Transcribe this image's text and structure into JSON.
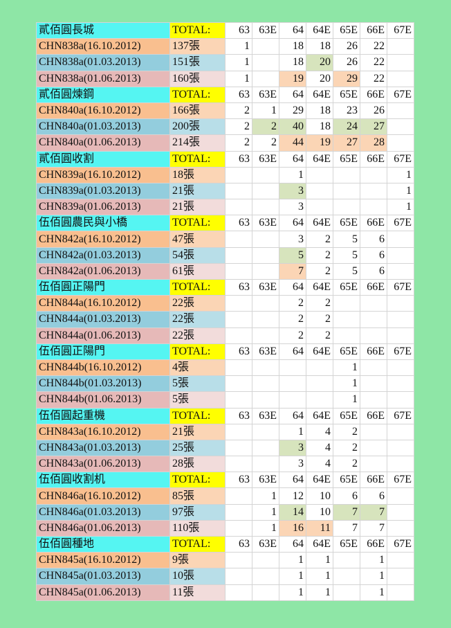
{
  "total_label": "TOTAL:",
  "columns": [
    "63",
    "63E",
    "64",
    "64E",
    "65E",
    "66E",
    "67E"
  ],
  "colors": {
    "background": "#8ee6a6",
    "group_header": "#55f5f2",
    "total_header": "#ffff00",
    "column_header": "#b3a2cd",
    "increase_green": "#d7e4bd",
    "increase_orange": "#fbd5b5"
  },
  "groups": [
    {
      "title": "貳佰圓長城",
      "rows": [
        {
          "name": "CHN838a(16.10.2012)",
          "total": "137張",
          "cells": [
            "1",
            "",
            "18",
            "18",
            "26",
            "22",
            ""
          ],
          "hl": [
            "",
            "",
            "",
            "",
            "",
            "",
            ""
          ]
        },
        {
          "name": "CHN838a(01.03.2013)",
          "total": "151張",
          "cells": [
            "1",
            "",
            "18",
            "20",
            "26",
            "22",
            ""
          ],
          "hl": [
            "",
            "",
            "",
            "g",
            "",
            "",
            ""
          ]
        },
        {
          "name": "CHN838a(01.06.2013)",
          "total": "160張",
          "cells": [
            "1",
            "",
            "19",
            "20",
            "29",
            "22",
            ""
          ],
          "hl": [
            "",
            "",
            "o",
            "",
            "o",
            "",
            ""
          ]
        }
      ]
    },
    {
      "title": "貳佰圓煉鋼",
      "rows": [
        {
          "name": "CHN840a(16.10.2012)",
          "total": "166張",
          "cells": [
            "2",
            "1",
            "29",
            "18",
            "23",
            "26",
            ""
          ],
          "hl": [
            "",
            "",
            "",
            "",
            "",
            "",
            ""
          ]
        },
        {
          "name": "CHN840a(01.03.2013)",
          "total": "200張",
          "cells": [
            "2",
            "2",
            "40",
            "18",
            "24",
            "27",
            ""
          ],
          "hl": [
            "",
            "g",
            "g",
            "",
            "g",
            "g",
            ""
          ]
        },
        {
          "name": "CHN840a(01.06.2013)",
          "total": "214張",
          "cells": [
            "2",
            "2",
            "44",
            "19",
            "27",
            "28",
            ""
          ],
          "hl": [
            "",
            "",
            "o",
            "o",
            "o",
            "o",
            ""
          ]
        }
      ]
    },
    {
      "title": "貳佰圓收割",
      "rows": [
        {
          "name": "CHN839a(16.10.2012)",
          "total": "18張",
          "cells": [
            "",
            "",
            "1",
            "",
            "",
            "",
            "1"
          ],
          "hl": [
            "",
            "",
            "",
            "",
            "",
            "",
            ""
          ]
        },
        {
          "name": "CHN839a(01.03.2013)",
          "total": "21張",
          "cells": [
            "",
            "",
            "3",
            "",
            "",
            "",
            "1"
          ],
          "hl": [
            "",
            "",
            "g",
            "",
            "",
            "",
            ""
          ]
        },
        {
          "name": "CHN839a(01.06.2013)",
          "total": "21張",
          "cells": [
            "",
            "",
            "3",
            "",
            "",
            "",
            "1"
          ],
          "hl": [
            "",
            "",
            "",
            "",
            "",
            "",
            ""
          ]
        }
      ]
    },
    {
      "title": "伍佰圓農民與小橋",
      "rows": [
        {
          "name": "CHN842a(16.10.2012)",
          "total": "47張",
          "cells": [
            "",
            "",
            "3",
            "2",
            "5",
            "6",
            ""
          ],
          "hl": [
            "",
            "",
            "",
            "",
            "",
            "",
            ""
          ]
        },
        {
          "name": "CHN842a(01.03.2013)",
          "total": "54張",
          "cells": [
            "",
            "",
            "5",
            "2",
            "5",
            "6",
            ""
          ],
          "hl": [
            "",
            "",
            "g",
            "",
            "",
            "",
            ""
          ]
        },
        {
          "name": "CHN842a(01.06.2013)",
          "total": "61張",
          "cells": [
            "",
            "",
            "7",
            "2",
            "5",
            "6",
            ""
          ],
          "hl": [
            "",
            "",
            "o",
            "",
            "",
            "",
            ""
          ]
        }
      ]
    },
    {
      "title": "伍佰圓正陽門",
      "rows": [
        {
          "name": "CHN844a(16.10.2012)",
          "total": "22張",
          "cells": [
            "",
            "",
            "2",
            "2",
            "",
            "",
            ""
          ],
          "hl": [
            "",
            "",
            "",
            "",
            "",
            "",
            ""
          ]
        },
        {
          "name": "CHN844a(01.03.2013)",
          "total": "22張",
          "cells": [
            "",
            "",
            "2",
            "2",
            "",
            "",
            ""
          ],
          "hl": [
            "",
            "",
            "",
            "",
            "",
            "",
            ""
          ]
        },
        {
          "name": "CHN844a(01.06.2013)",
          "total": "22張",
          "cells": [
            "",
            "",
            "2",
            "2",
            "",
            "",
            ""
          ],
          "hl": [
            "",
            "",
            "",
            "",
            "",
            "",
            ""
          ]
        }
      ]
    },
    {
      "title": "伍佰圓正陽門",
      "rows": [
        {
          "name": "CHN844b(16.10.2012)",
          "total": "4張",
          "cells": [
            "",
            "",
            "",
            "",
            "1",
            "",
            ""
          ],
          "hl": [
            "",
            "",
            "",
            "",
            "",
            "",
            ""
          ]
        },
        {
          "name": "CHN844b(01.03.2013)",
          "total": "5張",
          "cells": [
            "",
            "",
            "",
            "",
            "1",
            "",
            ""
          ],
          "hl": [
            "",
            "",
            "",
            "",
            "",
            "",
            ""
          ]
        },
        {
          "name": "CHN844b(01.06.2013)",
          "total": "5張",
          "cells": [
            "",
            "",
            "",
            "",
            "1",
            "",
            ""
          ],
          "hl": [
            "",
            "",
            "",
            "",
            "",
            "",
            ""
          ]
        }
      ]
    },
    {
      "title": "伍佰圓起重機",
      "rows": [
        {
          "name": "CHN843a(16.10.2012)",
          "total": "21張",
          "cells": [
            "",
            "",
            "1",
            "4",
            "2",
            "",
            ""
          ],
          "hl": [
            "",
            "",
            "",
            "",
            "",
            "",
            ""
          ]
        },
        {
          "name": "CHN843a(01.03.2013)",
          "total": "25張",
          "cells": [
            "",
            "",
            "3",
            "4",
            "2",
            "",
            ""
          ],
          "hl": [
            "",
            "",
            "g",
            "",
            "",
            "",
            ""
          ]
        },
        {
          "name": "CHN843a(01.06.2013)",
          "total": "28張",
          "cells": [
            "",
            "",
            "3",
            "4",
            "2",
            "",
            ""
          ],
          "hl": [
            "",
            "",
            "",
            "",
            "",
            "",
            ""
          ]
        }
      ]
    },
    {
      "title": "伍佰圓收割机",
      "rows": [
        {
          "name": "CHN846a(16.10.2012)",
          "total": "85張",
          "cells": [
            "",
            "1",
            "12",
            "10",
            "6",
            "6",
            ""
          ],
          "hl": [
            "",
            "",
            "",
            "",
            "",
            "",
            ""
          ]
        },
        {
          "name": "CHN846a(01.03.2013)",
          "total": "97張",
          "cells": [
            "",
            "1",
            "14",
            "10",
            "7",
            "7",
            ""
          ],
          "hl": [
            "",
            "",
            "g",
            "",
            "g",
            "g",
            ""
          ]
        },
        {
          "name": "CHN846a(01.06.2013)",
          "total": "110張",
          "cells": [
            "",
            "1",
            "16",
            "11",
            "7",
            "7",
            ""
          ],
          "hl": [
            "",
            "",
            "o",
            "o",
            "",
            "",
            ""
          ]
        }
      ]
    },
    {
      "title": "伍佰圓種地",
      "rows": [
        {
          "name": "CHN845a(16.10.2012)",
          "total": "9張",
          "cells": [
            "",
            "",
            "1",
            "1",
            "",
            "1",
            ""
          ],
          "hl": [
            "",
            "",
            "",
            "",
            "",
            "",
            ""
          ]
        },
        {
          "name": "CHN845a(01.03.2013)",
          "total": "10張",
          "cells": [
            "",
            "",
            "1",
            "1",
            "",
            "1",
            ""
          ],
          "hl": [
            "",
            "",
            "",
            "",
            "",
            "",
            ""
          ]
        },
        {
          "name": "CHN845a(01.06.2013)",
          "total": "11張",
          "cells": [
            "",
            "",
            "1",
            "1",
            "",
            "1",
            ""
          ],
          "hl": [
            "",
            "",
            "",
            "",
            "",
            "",
            ""
          ]
        }
      ]
    }
  ]
}
